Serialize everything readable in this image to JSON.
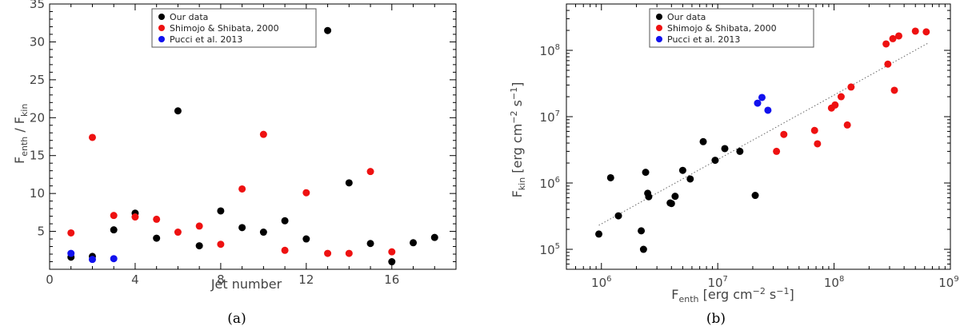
{
  "chart_data": [
    {
      "type": "scatter",
      "caption": "(a)",
      "xlabel": "Jet number",
      "ylabel_main": "F",
      "ylabel_sub1": "enth",
      "ylabel_mid": " / F",
      "ylabel_sub2": "kin",
      "xlim": [
        0,
        19
      ],
      "ylim": [
        0,
        35
      ],
      "x_ticks": [
        0,
        4,
        8,
        12,
        16
      ],
      "y_ticks": [
        5,
        10,
        15,
        20,
        25,
        30,
        35
      ],
      "legend_position": "top-center",
      "series": [
        {
          "name": "Our data",
          "color": "#000000",
          "x": [
            1,
            2,
            3,
            4,
            5,
            6,
            7,
            8,
            9,
            10,
            11,
            12,
            13,
            14,
            15,
            16,
            17,
            18
          ],
          "y": [
            1.6,
            1.7,
            5.2,
            7.4,
            4.1,
            20.9,
            3.1,
            7.7,
            5.5,
            4.9,
            6.4,
            4.0,
            31.5,
            11.4,
            3.4,
            1.0,
            3.5,
            4.2
          ]
        },
        {
          "name": "Shimojo & Shibata, 2000",
          "color": "#ee1111",
          "x": [
            1,
            2,
            3,
            4,
            5,
            6,
            7,
            8,
            9,
            10,
            11,
            12,
            13,
            14,
            15,
            16
          ],
          "y": [
            4.8,
            17.4,
            7.1,
            6.9,
            6.6,
            4.9,
            5.7,
            3.3,
            10.6,
            17.8,
            2.5,
            10.1,
            2.1,
            2.1,
            12.9,
            2.3
          ]
        },
        {
          "name": "Pucci et al. 2013",
          "color": "#1111ee",
          "x": [
            1,
            2,
            3
          ],
          "y": [
            2.1,
            1.3,
            1.4
          ]
        }
      ]
    },
    {
      "type": "scatter",
      "caption": "(b)",
      "xlabel_main": "F",
      "xlabel_sub": "enth",
      "xlabel_units": " [erg cm",
      "xlabel_sup1": "−2",
      "xlabel_s": " s",
      "xlabel_sup2": "−1",
      "xlabel_end": "]",
      "ylabel_main": "F",
      "ylabel_sub": "kin",
      "ylabel_units": " [erg cm",
      "ylabel_sup1": "−2",
      "ylabel_s": " s",
      "ylabel_sup2": "−1",
      "ylabel_end": "]",
      "x_scale": "log",
      "y_scale": "log",
      "xlim": [
        500000,
        1000000000
      ],
      "ylim": [
        50000,
        500000000
      ],
      "x_ticks": [
        {
          "value": 1000000,
          "base": "10",
          "exp": "6"
        },
        {
          "value": 10000000,
          "base": "10",
          "exp": "7"
        },
        {
          "value": 100000000,
          "base": "10",
          "exp": "8"
        },
        {
          "value": 1000000000,
          "base": "10",
          "exp": "9"
        }
      ],
      "y_ticks": [
        {
          "value": 100000,
          "base": "10",
          "exp": "5"
        },
        {
          "value": 1000000,
          "base": "10",
          "exp": "6"
        },
        {
          "value": 10000000,
          "base": "10",
          "exp": "7"
        },
        {
          "value": 100000000,
          "base": "10",
          "exp": "8"
        }
      ],
      "legend_position": "top-center",
      "fit_line": {
        "x": [
          950000,
          650000000
        ],
        "y": [
          230000,
          130000000
        ]
      },
      "series": [
        {
          "name": "Our data",
          "color": "#000000",
          "x": [
            950000,
            1200000,
            1400000,
            2200000,
            2300000,
            2400000,
            2500000,
            2550000,
            3900000,
            4000000,
            4300000,
            5000000,
            5800000,
            7500000,
            9500000,
            11500000,
            15500000,
            21000000
          ],
          "y": [
            170000,
            1200000,
            320000,
            190000,
            100000,
            1450000,
            700000,
            620000,
            500000,
            490000,
            630000,
            1550000,
            1150000,
            4200000,
            2200000,
            3300000,
            3000000,
            650000
          ]
        },
        {
          "name": "Shimojo & Shibata, 2000",
          "color": "#ee1111",
          "x": [
            32000000,
            37000000,
            68000000,
            72000000,
            95000000,
            102000000,
            115000000,
            130000000,
            140000000,
            280000000,
            290000000,
            320000000,
            330000000,
            360000000,
            500000000,
            620000000
          ],
          "y": [
            3000000,
            5400000,
            6200000,
            3900000,
            13500000,
            15000000,
            20000000,
            7500000,
            28000000,
            125000000,
            62000000,
            150000000,
            25000000,
            165000000,
            195000000,
            190000000
          ]
        },
        {
          "name": "Pucci et al. 2013",
          "color": "#1111ee",
          "x": [
            22000000,
            24000000,
            27000000
          ],
          "y": [
            16000000,
            19500000,
            12500000
          ]
        }
      ]
    }
  ]
}
